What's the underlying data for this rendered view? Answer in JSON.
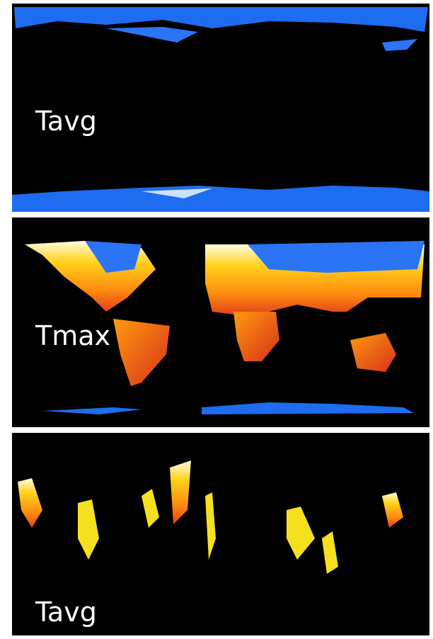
{
  "panels": [
    {
      "label": "Tavg"
    },
    {
      "label": "Tmax"
    },
    {
      "label": "Tavg"
    }
  ]
}
